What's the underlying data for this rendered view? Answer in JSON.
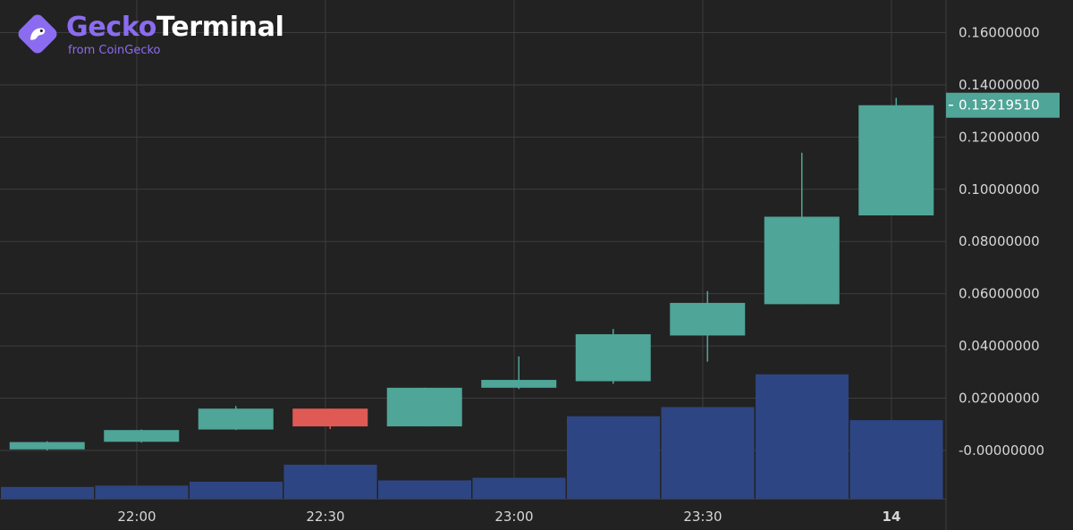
{
  "brand": {
    "name_part1": "Gecko",
    "name_part2": "Terminal",
    "subtitle": "from CoinGecko",
    "icon": "gecko-logo-icon",
    "color": "#8b6cf0"
  },
  "colors": {
    "background": "#222222",
    "grid": "#3d3d3d",
    "up": "#4fa597",
    "down": "#e05a55",
    "volume": "#2e4583",
    "axis_text": "#d6d6d6",
    "price_label_bg": "#4fa597"
  },
  "chart_data": {
    "type": "candlestick",
    "title": "",
    "y_ticks": [
      "0.16000000",
      "0.14000000",
      "0.12000000",
      "0.10000000",
      "0.08000000",
      "0.06000000",
      "0.04000000",
      "0.02000000",
      "-0.00000000"
    ],
    "y_tick_values": [
      0.16,
      0.14,
      0.12,
      0.1,
      0.08,
      0.06,
      0.04,
      0.02,
      0.0
    ],
    "ylim": [
      -0.0185,
      0.1725
    ],
    "x_ticks": [
      {
        "label": "22:00",
        "at": 1.45,
        "bold": false
      },
      {
        "label": "22:30",
        "at": 3.45,
        "bold": false
      },
      {
        "label": "23:00",
        "at": 5.45,
        "bold": false
      },
      {
        "label": "23:30",
        "at": 7.45,
        "bold": false
      },
      {
        "label": "14",
        "at": 9.45,
        "bold": true
      }
    ],
    "current_price": "0.13219510",
    "current_price_value": 0.1322,
    "candles": [
      {
        "open": 0.0004,
        "high": 0.0035,
        "low": 0.0,
        "close": 0.0032
      },
      {
        "open": 0.0033,
        "high": 0.008,
        "low": 0.003,
        "close": 0.0078
      },
      {
        "open": 0.008,
        "high": 0.017,
        "low": 0.0078,
        "close": 0.016
      },
      {
        "open": 0.016,
        "high": 0.016,
        "low": 0.0082,
        "close": 0.0092
      },
      {
        "open": 0.0092,
        "high": 0.024,
        "low": 0.0092,
        "close": 0.024
      },
      {
        "open": 0.024,
        "high": 0.036,
        "low": 0.0235,
        "close": 0.027
      },
      {
        "open": 0.0265,
        "high": 0.0465,
        "low": 0.0255,
        "close": 0.0445
      },
      {
        "open": 0.044,
        "high": 0.061,
        "low": 0.034,
        "close": 0.0565
      },
      {
        "open": 0.056,
        "high": 0.114,
        "low": 0.056,
        "close": 0.0895
      },
      {
        "open": 0.09,
        "high": 0.135,
        "low": 0.09,
        "close": 0.1322
      }
    ],
    "volume": [
      4.5,
      5,
      6.5,
      13,
      7,
      8,
      31.5,
      35,
      47.5,
      30
    ]
  }
}
